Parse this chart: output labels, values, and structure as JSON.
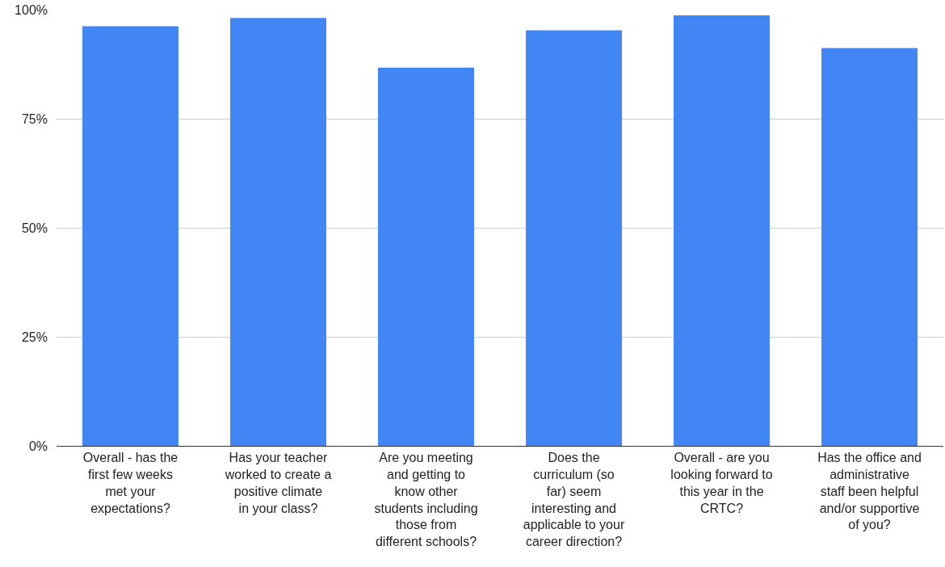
{
  "chart_data": {
    "type": "bar",
    "categories": [
      "Overall - has the first few weeks met your expectations?",
      "Has your teacher worked to create a positive climate in your class?",
      "Are you meeting and getting to know other students including those from different schools?",
      "Does the curriculum (so far) seem interesting and applicable to your career direction?",
      "Overall - are you looking forward to this year in the CRTC?",
      "Has the office and administrative staff been helpful and/or supportive of you?"
    ],
    "values": [
      96.2,
      98.1,
      86.7,
      95.3,
      98.7,
      91.2
    ],
    "color": "#4285f4",
    "ylim": [
      0,
      100
    ],
    "yticks": [
      {
        "value": 0,
        "label": "0%"
      },
      {
        "value": 25,
        "label": "25%"
      },
      {
        "value": 50,
        "label": "50%"
      },
      {
        "value": 75,
        "label": "75%"
      },
      {
        "value": 100,
        "label": "100%"
      }
    ],
    "grid": "y"
  }
}
